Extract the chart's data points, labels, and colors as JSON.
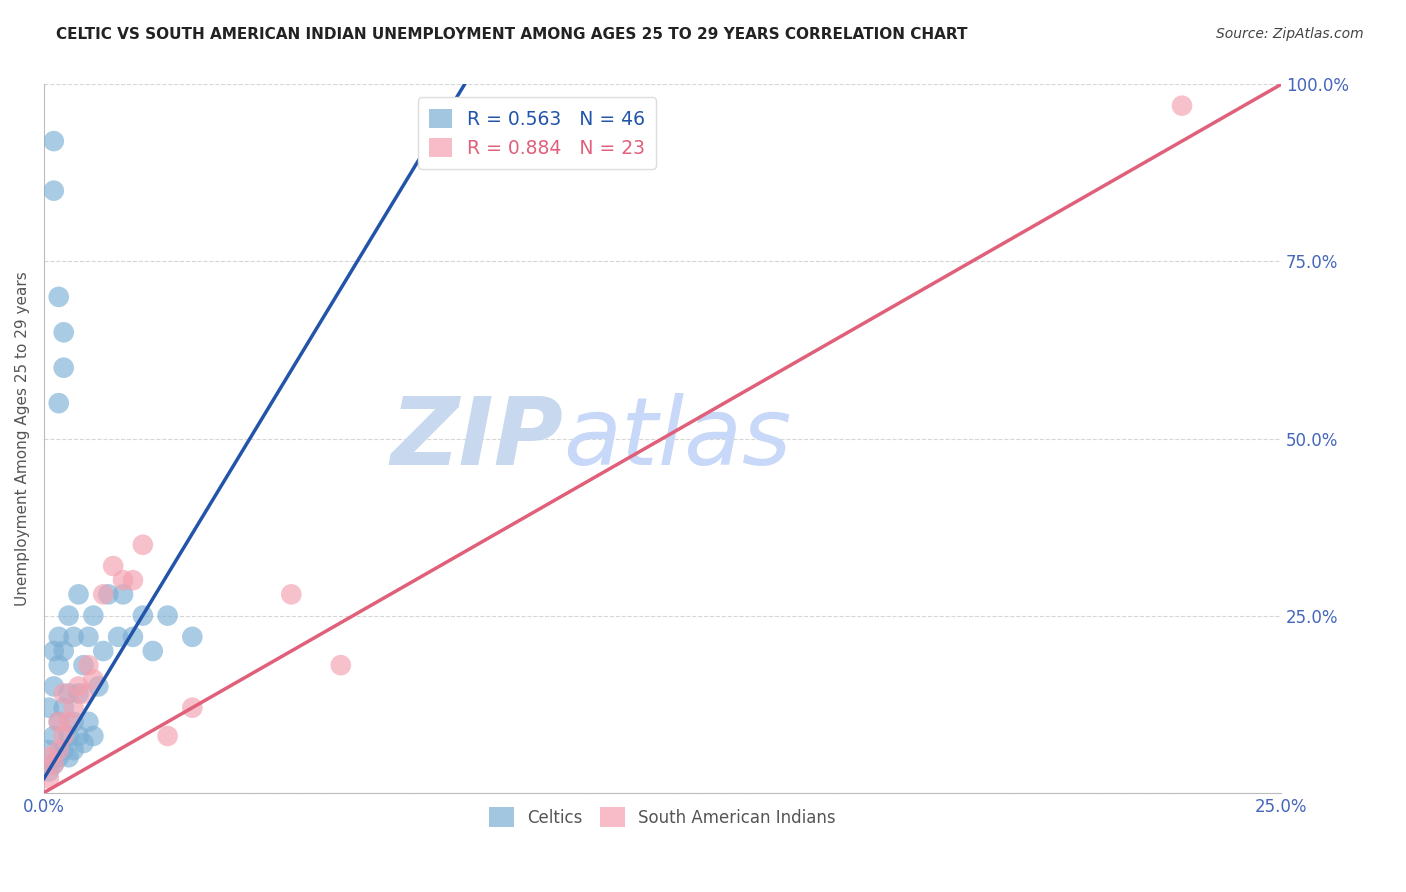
{
  "title": "CELTIC VS SOUTH AMERICAN INDIAN UNEMPLOYMENT AMONG AGES 25 TO 29 YEARS CORRELATION CHART",
  "source": "Source: ZipAtlas.com",
  "ylabel": "Unemployment Among Ages 25 to 29 years",
  "xlim": [
    0.0,
    0.25
  ],
  "ylim": [
    0.0,
    1.0
  ],
  "xticks": [
    0.0,
    0.05,
    0.1,
    0.15,
    0.2,
    0.25
  ],
  "xtick_labels": [
    "0.0%",
    "",
    "",
    "",
    "",
    "25.0%"
  ],
  "yticks": [
    0.0,
    0.25,
    0.5,
    0.75,
    1.0
  ],
  "ytick_labels": [
    "",
    "25.0%",
    "50.0%",
    "75.0%",
    "100.0%"
  ],
  "celtics_color": "#7BAFD4",
  "sai_color": "#F4A0B0",
  "celtics_line_color": "#2255AA",
  "sai_line_color": "#E0607A",
  "R_celtics": 0.563,
  "N_celtics": 46,
  "R_sai": 0.884,
  "N_sai": 23,
  "legend_label_celtics": "Celtics",
  "legend_label_sai": "South American Indians",
  "watermark_zip": "ZIP",
  "watermark_atlas": "atlas",
  "celtics_line_x0": 0.0,
  "celtics_line_y0": 0.02,
  "celtics_line_x1": 0.085,
  "celtics_line_y1": 1.0,
  "sai_line_x0": 0.0,
  "sai_line_y0": 0.0,
  "sai_line_x1": 0.25,
  "sai_line_y1": 1.0,
  "celtics_x": [
    0.001,
    0.001,
    0.001,
    0.002,
    0.002,
    0.002,
    0.002,
    0.003,
    0.003,
    0.003,
    0.003,
    0.004,
    0.004,
    0.004,
    0.005,
    0.005,
    0.005,
    0.005,
    0.006,
    0.006,
    0.006,
    0.007,
    0.007,
    0.007,
    0.008,
    0.008,
    0.009,
    0.009,
    0.01,
    0.01,
    0.011,
    0.012,
    0.013,
    0.015,
    0.016,
    0.018,
    0.02,
    0.022,
    0.025,
    0.03,
    0.002,
    0.003,
    0.004,
    0.002,
    0.003,
    0.004
  ],
  "celtics_y": [
    0.03,
    0.06,
    0.12,
    0.04,
    0.08,
    0.15,
    0.2,
    0.05,
    0.1,
    0.18,
    0.22,
    0.06,
    0.12,
    0.2,
    0.05,
    0.08,
    0.14,
    0.25,
    0.06,
    0.1,
    0.22,
    0.08,
    0.14,
    0.28,
    0.07,
    0.18,
    0.1,
    0.22,
    0.08,
    0.25,
    0.15,
    0.2,
    0.28,
    0.22,
    0.28,
    0.22,
    0.25,
    0.2,
    0.25,
    0.22,
    0.85,
    0.7,
    0.6,
    0.92,
    0.55,
    0.65
  ],
  "sai_x": [
    0.001,
    0.001,
    0.002,
    0.003,
    0.003,
    0.004,
    0.004,
    0.005,
    0.006,
    0.007,
    0.008,
    0.009,
    0.01,
    0.012,
    0.014,
    0.016,
    0.018,
    0.02,
    0.025,
    0.03,
    0.05,
    0.06,
    0.23
  ],
  "sai_y": [
    0.02,
    0.05,
    0.04,
    0.06,
    0.1,
    0.08,
    0.14,
    0.1,
    0.12,
    0.15,
    0.14,
    0.18,
    0.16,
    0.28,
    0.32,
    0.3,
    0.3,
    0.35,
    0.08,
    0.12,
    0.28,
    0.18,
    0.97
  ]
}
